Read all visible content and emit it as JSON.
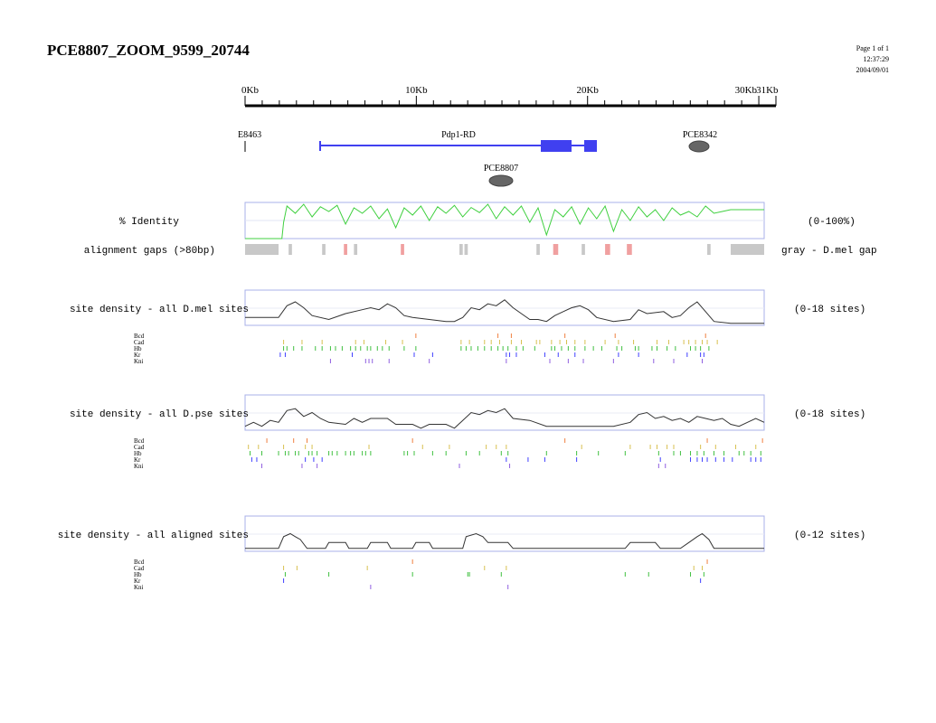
{
  "title": "PCE8807_ZOOM_9599_20744",
  "page_info": {
    "page": "Page 1 of 1",
    "time": "12:37:29",
    "date": "2004/09/01"
  },
  "ruler": {
    "labels": [
      "0Kb",
      "10Kb",
      "20Kb",
      "30Kb",
      "31Kb"
    ],
    "positions_kb": [
      0,
      10,
      20,
      30,
      31
    ],
    "max_kb": 31
  },
  "features": {
    "e_label": "E8463",
    "gene_label": "Pdp1-RD",
    "pce1_label": "PCE8342",
    "pce2_label": "PCE8807"
  },
  "identity": {
    "label": "% Identity",
    "range_label": "(0-100%)"
  },
  "gaps": {
    "label": "alignment gaps (>80bp)",
    "legend": "gray - D.mel gap"
  },
  "panels": [
    {
      "label": "site density - all D.mel sites",
      "range": "(0-18 sites)"
    },
    {
      "label": "site density - all D.pse sites",
      "range": "(0-18 sites)"
    },
    {
      "label": "site density - all aligned sites",
      "range": "(0-12 sites)"
    }
  ],
  "factors": [
    "Bcd",
    "Cad",
    "Hb",
    "Kr",
    "Kni"
  ],
  "colors": {
    "bcd": "#f08040",
    "cad": "#d8c050",
    "hb": "#40c040",
    "kr": "#4040ff",
    "kni": "#9060e0",
    "identity": "#40d040",
    "gene": "#4040f0",
    "gap_gray": "#c8c8c8",
    "gap_red": "#f0a0a0",
    "frame": "#a8b0e8"
  },
  "chart_data": {
    "type": "line",
    "xlabel": "",
    "ylabel": "",
    "x_unit": "Kb",
    "xlim": [
      0,
      31
    ],
    "identity_percent": [
      {
        "x": 0,
        "y": 0
      },
      {
        "x": 2.2,
        "y": 0
      },
      {
        "x": 2.3,
        "y": 45
      },
      {
        "x": 2.5,
        "y": 90
      },
      {
        "x": 3,
        "y": 70
      },
      {
        "x": 3.5,
        "y": 95
      },
      {
        "x": 4,
        "y": 60
      },
      {
        "x": 4.5,
        "y": 88
      },
      {
        "x": 5,
        "y": 75
      },
      {
        "x": 5.5,
        "y": 92
      },
      {
        "x": 6,
        "y": 40
      },
      {
        "x": 6.5,
        "y": 85
      },
      {
        "x": 7,
        "y": 70
      },
      {
        "x": 7.5,
        "y": 90
      },
      {
        "x": 8,
        "y": 55
      },
      {
        "x": 8.5,
        "y": 82
      },
      {
        "x": 9,
        "y": 30
      },
      {
        "x": 9.5,
        "y": 85
      },
      {
        "x": 10,
        "y": 65
      },
      {
        "x": 10.5,
        "y": 90
      },
      {
        "x": 11,
        "y": 50
      },
      {
        "x": 11.5,
        "y": 88
      },
      {
        "x": 12,
        "y": 70
      },
      {
        "x": 12.5,
        "y": 92
      },
      {
        "x": 13,
        "y": 60
      },
      {
        "x": 13.5,
        "y": 86
      },
      {
        "x": 14,
        "y": 72
      },
      {
        "x": 14.5,
        "y": 95
      },
      {
        "x": 15,
        "y": 55
      },
      {
        "x": 15.5,
        "y": 88
      },
      {
        "x": 16,
        "y": 65
      },
      {
        "x": 16.5,
        "y": 90
      },
      {
        "x": 17,
        "y": 45
      },
      {
        "x": 17.5,
        "y": 85
      },
      {
        "x": 18,
        "y": 10
      },
      {
        "x": 18.5,
        "y": 80
      },
      {
        "x": 19,
        "y": 60
      },
      {
        "x": 19.5,
        "y": 88
      },
      {
        "x": 20,
        "y": 40
      },
      {
        "x": 20.5,
        "y": 85
      },
      {
        "x": 21,
        "y": 55
      },
      {
        "x": 21.5,
        "y": 90
      },
      {
        "x": 22,
        "y": 20
      },
      {
        "x": 22.5,
        "y": 80
      },
      {
        "x": 23,
        "y": 50
      },
      {
        "x": 23.5,
        "y": 88
      },
      {
        "x": 24,
        "y": 60
      },
      {
        "x": 24.5,
        "y": 80
      },
      {
        "x": 25,
        "y": 50
      },
      {
        "x": 25.5,
        "y": 85
      },
      {
        "x": 26,
        "y": 65
      },
      {
        "x": 26.5,
        "y": 75
      },
      {
        "x": 27,
        "y": 60
      },
      {
        "x": 27.5,
        "y": 90
      },
      {
        "x": 28,
        "y": 70
      },
      {
        "x": 28.5,
        "y": 75
      },
      {
        "x": 29,
        "y": 80
      },
      {
        "x": 31,
        "y": 80
      }
    ],
    "gaps_gray": [
      [
        0,
        2
      ],
      [
        2.6,
        2.8
      ],
      [
        4.6,
        4.8
      ],
      [
        6.5,
        6.7
      ],
      [
        12.8,
        13
      ],
      [
        13.1,
        13.3
      ],
      [
        17.4,
        17.6
      ],
      [
        20.1,
        20.3
      ],
      [
        27.6,
        27.8
      ],
      [
        29,
        31
      ]
    ],
    "gaps_red": [
      [
        5.9,
        6.1
      ],
      [
        9.3,
        9.5
      ],
      [
        18.4,
        18.7
      ],
      [
        21.5,
        21.8
      ],
      [
        22.8,
        23.1
      ]
    ],
    "series": [
      {
        "name": "site density - all D.mel sites",
        "ymax": 18,
        "points": [
          {
            "x": 0,
            "y": 4
          },
          {
            "x": 2,
            "y": 4
          },
          {
            "x": 2.5,
            "y": 10
          },
          {
            "x": 3,
            "y": 12
          },
          {
            "x": 3.5,
            "y": 9
          },
          {
            "x": 4,
            "y": 5
          },
          {
            "x": 5,
            "y": 3
          },
          {
            "x": 6,
            "y": 6
          },
          {
            "x": 7,
            "y": 8
          },
          {
            "x": 7.5,
            "y": 9
          },
          {
            "x": 8,
            "y": 8
          },
          {
            "x": 8.5,
            "y": 11
          },
          {
            "x": 9,
            "y": 9
          },
          {
            "x": 9.5,
            "y": 5
          },
          {
            "x": 10,
            "y": 4
          },
          {
            "x": 11,
            "y": 3
          },
          {
            "x": 12,
            "y": 2
          },
          {
            "x": 12.5,
            "y": 2
          },
          {
            "x": 13,
            "y": 4
          },
          {
            "x": 13.5,
            "y": 9
          },
          {
            "x": 14,
            "y": 8
          },
          {
            "x": 14.5,
            "y": 11
          },
          {
            "x": 15,
            "y": 10
          },
          {
            "x": 15.5,
            "y": 13
          },
          {
            "x": 16,
            "y": 9
          },
          {
            "x": 16.5,
            "y": 6
          },
          {
            "x": 17,
            "y": 3
          },
          {
            "x": 17.5,
            "y": 3
          },
          {
            "x": 18,
            "y": 2
          },
          {
            "x": 18.5,
            "y": 5
          },
          {
            "x": 19,
            "y": 7
          },
          {
            "x": 19.5,
            "y": 9
          },
          {
            "x": 20,
            "y": 10
          },
          {
            "x": 20.5,
            "y": 8
          },
          {
            "x": 21,
            "y": 4
          },
          {
            "x": 22,
            "y": 2
          },
          {
            "x": 23,
            "y": 3
          },
          {
            "x": 23.5,
            "y": 8
          },
          {
            "x": 24,
            "y": 6
          },
          {
            "x": 25,
            "y": 7
          },
          {
            "x": 25.5,
            "y": 4
          },
          {
            "x": 26,
            "y": 5
          },
          {
            "x": 26.5,
            "y": 9
          },
          {
            "x": 27,
            "y": 12
          },
          {
            "x": 27.5,
            "y": 7
          },
          {
            "x": 28,
            "y": 2
          },
          {
            "x": 29,
            "y": 1
          },
          {
            "x": 31,
            "y": 1
          }
        ],
        "sites": {
          "Bcd": [
            10.2,
            15.1,
            15.9,
            19.1,
            22.1,
            27.5
          ],
          "Cad": [
            2.3,
            3.4,
            4.6,
            6.6,
            7.1,
            8.4,
            9.4,
            12.9,
            13.4,
            14.3,
            14.7,
            15.2,
            15.9,
            16.5,
            17.4,
            17.6,
            18.3,
            18.8,
            19.2,
            19.7,
            20.3,
            21.5,
            22.3,
            23.2,
            24.6,
            25.3,
            26.2,
            26.5,
            26.9,
            27.3,
            27.6,
            28.2
          ],
          "Hb": [
            2.3,
            2.5,
            2.9,
            3.4,
            4.2,
            4.6,
            5.1,
            5.4,
            5.8,
            6.3,
            6.6,
            6.9,
            7.3,
            7.5,
            7.9,
            8.2,
            8.6,
            9.5,
            10.2,
            12.9,
            13.2,
            13.5,
            13.9,
            14.3,
            14.7,
            15.1,
            15.4,
            15.7,
            16.2,
            16.6,
            17.3,
            18.3,
            18.5,
            18.9,
            19.3,
            19.7,
            20.3,
            20.8,
            21.3,
            22.2,
            22.5,
            23.3,
            23.5,
            24.3,
            24.6,
            25.2,
            25.7,
            26.6,
            26.9,
            27.2,
            27.7
          ],
          "Kr": [
            2.1,
            2.4,
            6.4,
            10.1,
            11.2,
            15.6,
            15.8,
            16.2,
            17.9,
            18.7,
            19.7,
            22.3,
            23.5,
            26.4,
            27.2,
            27.4
          ],
          "Kni": [
            5.1,
            7.2,
            7.4,
            7.6,
            8.6,
            11,
            15.6,
            18.2,
            19.3,
            20.2,
            22,
            24.4,
            25.6,
            27.3
          ]
        }
      },
      {
        "name": "site density - all D.pse sites",
        "ymax": 18,
        "points": [
          {
            "x": 0,
            "y": 2
          },
          {
            "x": 0.5,
            "y": 4
          },
          {
            "x": 1,
            "y": 2
          },
          {
            "x": 1.5,
            "y": 5
          },
          {
            "x": 2,
            "y": 4
          },
          {
            "x": 2.5,
            "y": 10
          },
          {
            "x": 3,
            "y": 11
          },
          {
            "x": 3.5,
            "y": 7
          },
          {
            "x": 4,
            "y": 9
          },
          {
            "x": 4.5,
            "y": 6
          },
          {
            "x": 5,
            "y": 4
          },
          {
            "x": 6,
            "y": 3
          },
          {
            "x": 6.5,
            "y": 6
          },
          {
            "x": 7,
            "y": 4
          },
          {
            "x": 7.5,
            "y": 6
          },
          {
            "x": 8.5,
            "y": 6
          },
          {
            "x": 9,
            "y": 3
          },
          {
            "x": 10,
            "y": 3
          },
          {
            "x": 10.5,
            "y": 1
          },
          {
            "x": 11,
            "y": 3
          },
          {
            "x": 12,
            "y": 3
          },
          {
            "x": 12.5,
            "y": 1
          },
          {
            "x": 13,
            "y": 5
          },
          {
            "x": 13.5,
            "y": 9
          },
          {
            "x": 14,
            "y": 8
          },
          {
            "x": 14.5,
            "y": 10
          },
          {
            "x": 15,
            "y": 9
          },
          {
            "x": 15.5,
            "y": 11
          },
          {
            "x": 16,
            "y": 6
          },
          {
            "x": 17,
            "y": 5
          },
          {
            "x": 18,
            "y": 2
          },
          {
            "x": 19,
            "y": 2
          },
          {
            "x": 20,
            "y": 2
          },
          {
            "x": 21,
            "y": 2
          },
          {
            "x": 22,
            "y": 2
          },
          {
            "x": 23,
            "y": 4
          },
          {
            "x": 23.5,
            "y": 8
          },
          {
            "x": 24,
            "y": 9
          },
          {
            "x": 24.5,
            "y": 6
          },
          {
            "x": 25,
            "y": 7
          },
          {
            "x": 25.5,
            "y": 5
          },
          {
            "x": 26,
            "y": 6
          },
          {
            "x": 26.5,
            "y": 4
          },
          {
            "x": 27,
            "y": 7
          },
          {
            "x": 27.5,
            "y": 6
          },
          {
            "x": 28,
            "y": 5
          },
          {
            "x": 28.5,
            "y": 6
          },
          {
            "x": 29,
            "y": 3
          },
          {
            "x": 29.5,
            "y": 2
          },
          {
            "x": 30,
            "y": 4
          },
          {
            "x": 30.5,
            "y": 6
          },
          {
            "x": 31,
            "y": 4
          }
        ],
        "sites": {
          "Bcd": [
            1.3,
            2.9,
            3.7,
            10,
            19.1,
            27.6,
            30.9
          ],
          "Cad": [
            0.2,
            0.8,
            2.3,
            3.6,
            4,
            7.4,
            10.6,
            12.2,
            14.4,
            15,
            15.6,
            20.1,
            23,
            24.2,
            24.6,
            25.2,
            25.6,
            27.2,
            28.1,
            29.3,
            30.5
          ],
          "Hb": [
            0.3,
            1,
            2,
            2.4,
            2.6,
            3,
            3.2,
            3.8,
            4,
            4.3,
            5,
            5.2,
            5.5,
            6,
            6.3,
            6.5,
            7,
            7.2,
            7.5,
            9.5,
            9.7,
            10.1,
            11.2,
            12,
            13.2,
            14,
            15.3,
            15.7,
            18,
            19.8,
            21.1,
            22.7,
            24.7,
            25.6,
            26,
            26.6,
            27,
            27.4,
            28,
            28.6,
            29.5,
            29.8,
            30.2,
            30.8
          ],
          "Kr": [
            0.4,
            0.7,
            3.6,
            4.1,
            4.6,
            15.6,
            16.9,
            17.9,
            19.8,
            24.8,
            26.6,
            27,
            27.3,
            27.6,
            28.1,
            28.6,
            29.1,
            30.2,
            30.5,
            30.8
          ],
          "Kni": [
            1,
            3.4,
            4.3,
            12.8,
            15.8,
            24.7,
            25.1
          ]
        }
      },
      {
        "name": "site density - all aligned sites",
        "ymax": 12,
        "points": [
          {
            "x": 0,
            "y": 1
          },
          {
            "x": 2,
            "y": 1
          },
          {
            "x": 2.3,
            "y": 5
          },
          {
            "x": 2.7,
            "y": 6
          },
          {
            "x": 3,
            "y": 5
          },
          {
            "x": 3.3,
            "y": 4
          },
          {
            "x": 3.7,
            "y": 1
          },
          {
            "x": 4.8,
            "y": 1
          },
          {
            "x": 5,
            "y": 3
          },
          {
            "x": 6,
            "y": 3
          },
          {
            "x": 6.2,
            "y": 1
          },
          {
            "x": 7.3,
            "y": 1
          },
          {
            "x": 7.5,
            "y": 3
          },
          {
            "x": 8.5,
            "y": 3
          },
          {
            "x": 8.7,
            "y": 1
          },
          {
            "x": 10,
            "y": 1
          },
          {
            "x": 10.2,
            "y": 3
          },
          {
            "x": 11,
            "y": 3
          },
          {
            "x": 11.2,
            "y": 1
          },
          {
            "x": 13,
            "y": 1
          },
          {
            "x": 13.2,
            "y": 5
          },
          {
            "x": 13.8,
            "y": 6
          },
          {
            "x": 14.2,
            "y": 5
          },
          {
            "x": 14.5,
            "y": 3
          },
          {
            "x": 15.7,
            "y": 3
          },
          {
            "x": 16,
            "y": 1
          },
          {
            "x": 19,
            "y": 1
          },
          {
            "x": 21,
            "y": 1
          },
          {
            "x": 22.7,
            "y": 1
          },
          {
            "x": 23,
            "y": 3
          },
          {
            "x": 24.5,
            "y": 3
          },
          {
            "x": 24.8,
            "y": 1
          },
          {
            "x": 26,
            "y": 1
          },
          {
            "x": 26.5,
            "y": 3
          },
          {
            "x": 27,
            "y": 5
          },
          {
            "x": 27.3,
            "y": 6
          },
          {
            "x": 27.7,
            "y": 4
          },
          {
            "x": 28,
            "y": 1
          },
          {
            "x": 31,
            "y": 1
          }
        ],
        "sites": {
          "Bcd": [
            10,
            27.6
          ],
          "Cad": [
            2.3,
            3.1,
            7.3,
            14.3,
            15.6,
            26.8,
            27.3
          ],
          "Hb": [
            2.4,
            5,
            10,
            13.3,
            13.4,
            15.3,
            22.7,
            24.1,
            26.6,
            27.4
          ],
          "Kr": [
            2.3,
            27.2
          ],
          "Kni": [
            7.5,
            15.7
          ]
        }
      }
    ]
  }
}
